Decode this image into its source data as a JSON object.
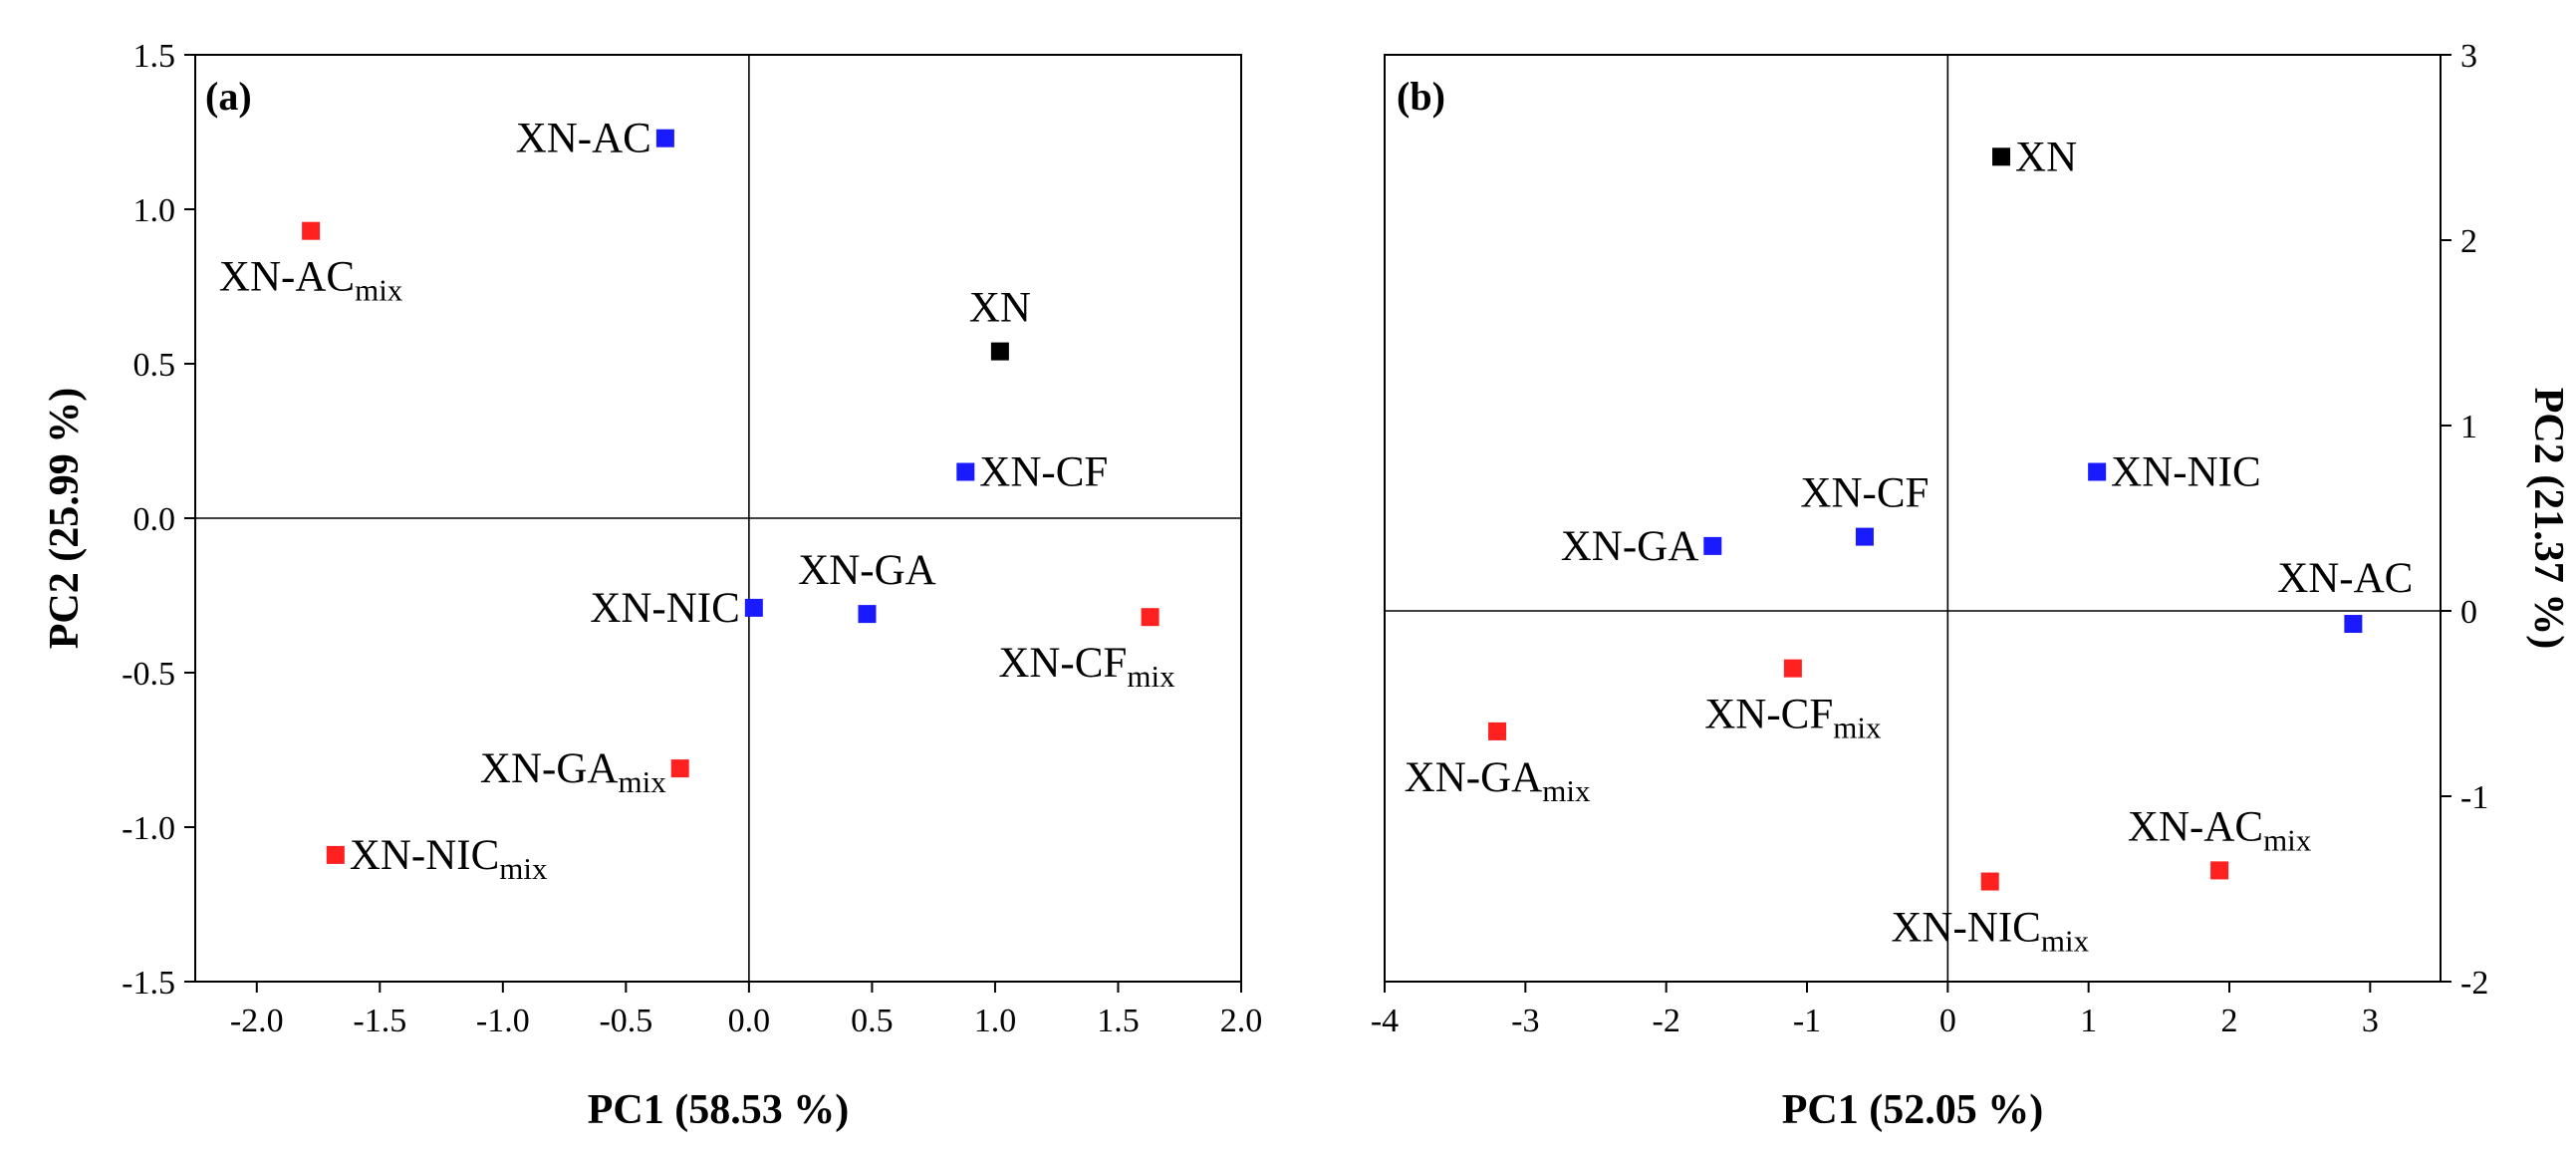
{
  "chart_data": [
    {
      "type": "scatter",
      "panel": "(a)",
      "xlabel": "PC1 (58.53 %)",
      "ylabel": "PC2 (25.99 %)",
      "xlim": [
        -2.25,
        2.0
      ],
      "ylim": [
        -1.5,
        1.5
      ],
      "xticks": [
        -2.0,
        -1.5,
        -1.0,
        -0.5,
        0.0,
        0.5,
        1.0,
        1.5,
        2.0
      ],
      "xtick_labels": [
        "-2.0",
        "-1.5",
        "-1.0",
        "-0.5",
        "0.0",
        "0.5",
        "1.0",
        "1.5",
        "2.0"
      ],
      "yticks": [
        -1.5,
        -1.0,
        -0.5,
        0.0,
        0.5,
        1.0,
        1.5
      ],
      "ytick_labels": [
        "-1.5",
        "-1.0",
        "-0.5",
        "0.0",
        "0.5",
        "1.0",
        "1.5"
      ],
      "y_axis_side": "left",
      "zero_lines": true,
      "points": [
        {
          "label": "XN",
          "sub": "",
          "x": 1.02,
          "y": 0.54,
          "color": "#000000",
          "label_pos": "above"
        },
        {
          "label": "XN-AC",
          "sub": "",
          "x": -0.34,
          "y": 1.23,
          "color": "#1a1aff",
          "label_pos": "left"
        },
        {
          "label": "XN-CF",
          "sub": "",
          "x": 0.88,
          "y": 0.15,
          "color": "#1a1aff",
          "label_pos": "right"
        },
        {
          "label": "XN-GA",
          "sub": "",
          "x": 0.48,
          "y": -0.31,
          "color": "#1a1aff",
          "label_pos": "above"
        },
        {
          "label": "XN-NIC",
          "sub": "",
          "x": 0.02,
          "y": -0.29,
          "color": "#1a1aff",
          "label_pos": "left"
        },
        {
          "label": "XN-AC",
          "sub": "mix",
          "x": -1.78,
          "y": 0.93,
          "color": "#ff2020",
          "label_pos": "below"
        },
        {
          "label": "XN-CF",
          "sub": "mix",
          "x": 1.63,
          "y": -0.32,
          "color": "#ff2020",
          "label_pos": "below-left"
        },
        {
          "label": "XN-GA",
          "sub": "mix",
          "x": -0.28,
          "y": -0.81,
          "color": "#ff2020",
          "label_pos": "left"
        },
        {
          "label": "XN-NIC",
          "sub": "mix",
          "x": -1.68,
          "y": -1.09,
          "color": "#ff2020",
          "label_pos": "right"
        }
      ]
    },
    {
      "type": "scatter",
      "panel": "(b)",
      "xlabel": "PC1 (52.05 %)",
      "ylabel": "PC2 (21.37 %)",
      "xlim": [
        -4,
        3.5
      ],
      "ylim": [
        -2,
        3
      ],
      "xticks": [
        -4,
        -3,
        -2,
        -1,
        0,
        1,
        2,
        3
      ],
      "xtick_labels": [
        "-4",
        "-3",
        "-2",
        "-1",
        "0",
        "1",
        "2",
        "3"
      ],
      "yticks": [
        -2,
        -1,
        0,
        1,
        2,
        3
      ],
      "ytick_labels": [
        "-2",
        "-1",
        "0",
        "1",
        "2",
        "3"
      ],
      "y_axis_side": "right",
      "zero_lines": true,
      "points": [
        {
          "label": "XN",
          "sub": "",
          "x": 0.38,
          "y": 2.45,
          "color": "#000000",
          "label_pos": "right"
        },
        {
          "label": "XN-NIC",
          "sub": "",
          "x": 1.06,
          "y": 0.75,
          "color": "#1a1aff",
          "label_pos": "right"
        },
        {
          "label": "XN-AC",
          "sub": "",
          "x": 2.88,
          "y": -0.07,
          "color": "#1a1aff",
          "label_pos": "above-left"
        },
        {
          "label": "XN-CF",
          "sub": "",
          "x": -0.59,
          "y": 0.4,
          "color": "#1a1aff",
          "label_pos": "above"
        },
        {
          "label": "XN-GA",
          "sub": "",
          "x": -1.67,
          "y": 0.35,
          "color": "#1a1aff",
          "label_pos": "left"
        },
        {
          "label": "XN-CF",
          "sub": "mix",
          "x": -1.1,
          "y": -0.31,
          "color": "#ff2020",
          "label_pos": "below"
        },
        {
          "label": "XN-GA",
          "sub": "mix",
          "x": -3.2,
          "y": -0.65,
          "color": "#ff2020",
          "label_pos": "below"
        },
        {
          "label": "XN-AC",
          "sub": "mix",
          "x": 1.93,
          "y": -1.4,
          "color": "#ff2020",
          "label_pos": "above"
        },
        {
          "label": "XN-NIC",
          "sub": "mix",
          "x": 0.3,
          "y": -1.46,
          "color": "#ff2020",
          "label_pos": "below"
        }
      ]
    }
  ]
}
